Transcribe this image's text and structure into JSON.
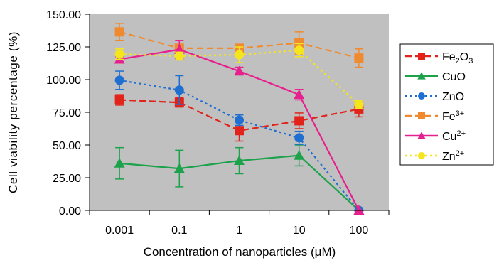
{
  "chart_data": {
    "type": "line",
    "ylabel": "Cell viability percentage (%)",
    "xlabel": "Concentration of nanoparticles (μM)",
    "categories": [
      "0.001",
      "0.1",
      "1",
      "10",
      "100"
    ],
    "ylim": [
      0,
      150
    ],
    "yticks": [
      "0.00",
      "25.00",
      "50.00",
      "75.00",
      "100.00",
      "125.00",
      "150.00"
    ],
    "plot_background": "#c0c0c0",
    "grid": false,
    "legend_position": "right",
    "series": [
      {
        "name": "Fe2O3",
        "label_main": "Fe",
        "label_sub": "2",
        "label_main2": "O",
        "label_sub2": "3",
        "label_sup": "",
        "color": "#e2231a",
        "dash": "dashed",
        "marker": "square",
        "values": [
          84.5,
          82.5,
          61,
          68.5,
          77.5
        ],
        "errors": [
          4,
          3.5,
          8,
          6,
          6
        ]
      },
      {
        "name": "CuO",
        "label_main": "CuO",
        "label_sub": "",
        "label_main2": "",
        "label_sub2": "",
        "label_sup": "",
        "color": "#1ca24a",
        "dash": "solid",
        "marker": "triangle",
        "values": [
          36,
          32,
          38,
          42,
          0
        ],
        "errors": [
          12,
          14,
          10,
          8,
          0
        ]
      },
      {
        "name": "ZnO",
        "label_main": "ZnO",
        "label_sub": "",
        "label_main2": "",
        "label_sub2": "",
        "label_sup": "",
        "color": "#1f6fd1",
        "dash": "dotted",
        "marker": "circle",
        "values": [
          99.5,
          92,
          69,
          55.5,
          0
        ],
        "errors": [
          7,
          11,
          4,
          5,
          0
        ]
      },
      {
        "name": "Fe3+",
        "label_main": "Fe",
        "label_sub": "",
        "label_main2": "",
        "label_sub2": "",
        "label_sup": "3+",
        "color": "#f08a2e",
        "dash": "dashed",
        "marker": "square",
        "values": [
          136.5,
          124,
          124,
          128,
          116.5
        ],
        "errors": [
          6.5,
          3,
          2.5,
          8.5,
          7
        ]
      },
      {
        "name": "Cu2+",
        "label_main": "Cu",
        "label_sub": "",
        "label_main2": "",
        "label_sub2": "",
        "label_sup": "2+",
        "color": "#e6208d",
        "dash": "solid",
        "marker": "triangle",
        "values": [
          115.5,
          123,
          106.5,
          88.5,
          0
        ],
        "errors": [
          2,
          7,
          3,
          4,
          0
        ]
      },
      {
        "name": "Zn2+",
        "label_main": "Zn",
        "label_sub": "",
        "label_main2": "",
        "label_sub2": "",
        "label_sup": "2+",
        "color": "#f5e51c",
        "dash": "dotted",
        "marker": "circle",
        "values": [
          119.5,
          118,
          119,
          122.5,
          81
        ],
        "errors": [
          4,
          3,
          6,
          5,
          3
        ]
      }
    ]
  }
}
